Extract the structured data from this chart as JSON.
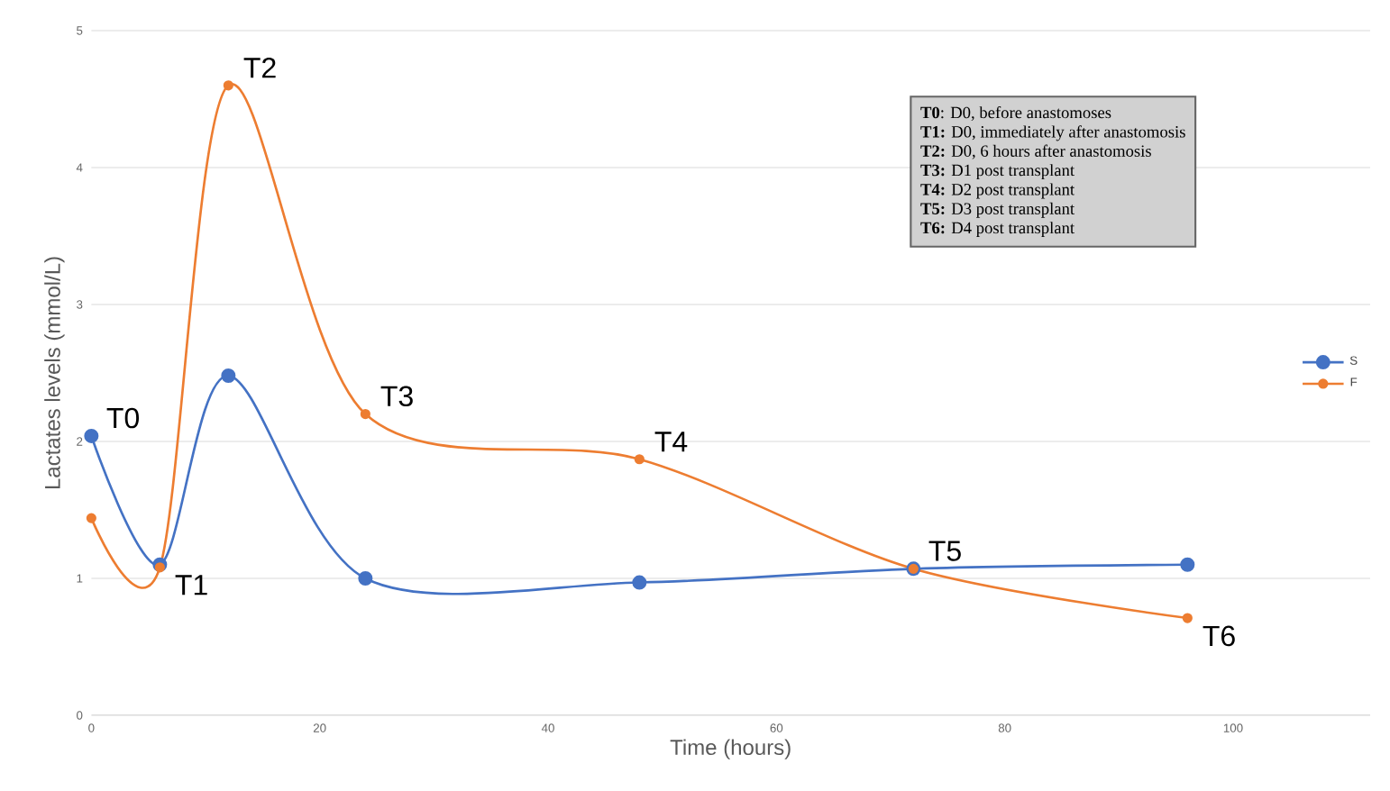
{
  "chart_data": {
    "type": "line",
    "xlabel": "Time (hours)",
    "ylabel": "Lactates levels (mmol/L)",
    "x": [
      0,
      6,
      12,
      24,
      48,
      72,
      96
    ],
    "series": [
      {
        "name": "S",
        "color": "#4472c4",
        "values": [
          2.04,
          1.1,
          2.48,
          1.0,
          0.97,
          1.07,
          1.1
        ]
      },
      {
        "name": "F",
        "color": "#ed7d31",
        "values": [
          1.44,
          1.08,
          4.6,
          2.2,
          1.87,
          1.07,
          0.71
        ]
      }
    ],
    "xlim": [
      0,
      112
    ],
    "xticks": [
      0,
      20,
      40,
      60,
      80,
      100
    ],
    "ylim": [
      0,
      5
    ],
    "yticks": [
      0,
      1,
      2,
      3,
      4,
      5
    ],
    "grid": "y",
    "legend": "right",
    "marker": "circle",
    "line_style": "solid",
    "annotations": [
      {
        "text": "T0",
        "x": 0,
        "y": 2.04
      },
      {
        "text": "T1",
        "x": 6,
        "y": 1.08
      },
      {
        "text": "T2",
        "x": 12,
        "y": 4.6
      },
      {
        "text": "T3",
        "x": 24,
        "y": 2.2
      },
      {
        "text": "T4",
        "x": 48,
        "y": 1.87
      },
      {
        "text": "T5",
        "x": 72,
        "y": 1.07
      },
      {
        "text": "T6",
        "x": 96,
        "y": 0.71
      },
      "**T0**: D0, before anastomoses",
      "**T1:** D0, immediately after anastomosis",
      "**T2:** D0, 6 hours after anastomosis",
      "**T3:** D1 post transplant",
      "**T4:** D2 post transplant",
      "**T5:** D3 post transplant",
      "**T6:** D4 post transplant"
    ]
  }
}
